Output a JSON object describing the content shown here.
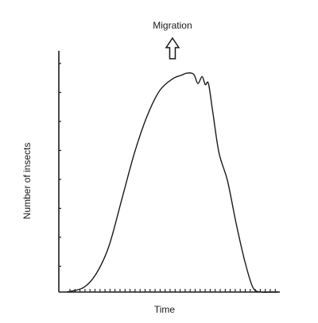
{
  "chart_data": {
    "type": "line",
    "title": "",
    "xlabel": "Time",
    "ylabel": "Number of insects",
    "x_ticks_labeled": false,
    "y_ticks_labeled": false,
    "grid": false,
    "legend": "none",
    "xlim": [
      0,
      1
    ],
    "ylim": [
      0,
      1
    ],
    "series": [
      {
        "name": "",
        "x": [
          0.0,
          0.08,
          0.14,
          0.2,
          0.26,
          0.32,
          0.38,
          0.44,
          0.5,
          0.54,
          0.57,
          0.6,
          0.62,
          0.64,
          0.655,
          0.67,
          0.69,
          0.72,
          0.76,
          0.8,
          0.84,
          0.88,
          0.92,
          0.96,
          1.0
        ],
        "y": [
          0.0,
          0.02,
          0.08,
          0.2,
          0.4,
          0.6,
          0.76,
          0.87,
          0.92,
          0.935,
          0.945,
          0.94,
          0.9,
          0.93,
          0.895,
          0.9,
          0.78,
          0.6,
          0.48,
          0.3,
          0.14,
          0.02,
          0.0,
          0.0,
          0.0
        ]
      }
    ],
    "annotations": [
      {
        "text": "Migration",
        "at_x": 0.56,
        "marker": "upward-arrow"
      }
    ],
    "colors": {
      "line": "#1a1a1a",
      "axis": "#1a1a1a",
      "background": "#ffffff"
    }
  }
}
